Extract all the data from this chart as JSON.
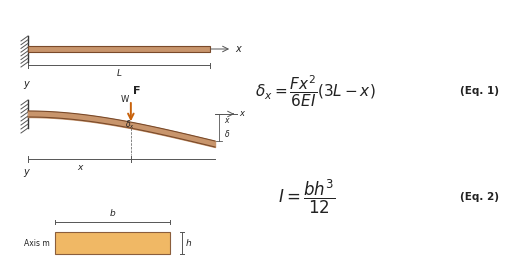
{
  "bg_color": "#ffffff",
  "beam_color": "#c8956c",
  "beam_edge_color": "#7a4a2a",
  "hatch_color": "#555555",
  "arrow_color": "#c8610a",
  "dim_line_color": "#555555",
  "text_color": "#222222",
  "rect_fill": "#f0b865",
  "fig_width": 4.74,
  "fig_height": 2.59,
  "eq1_label": "(Eq. 1)",
  "eq2_label": "(Eq. 2)"
}
